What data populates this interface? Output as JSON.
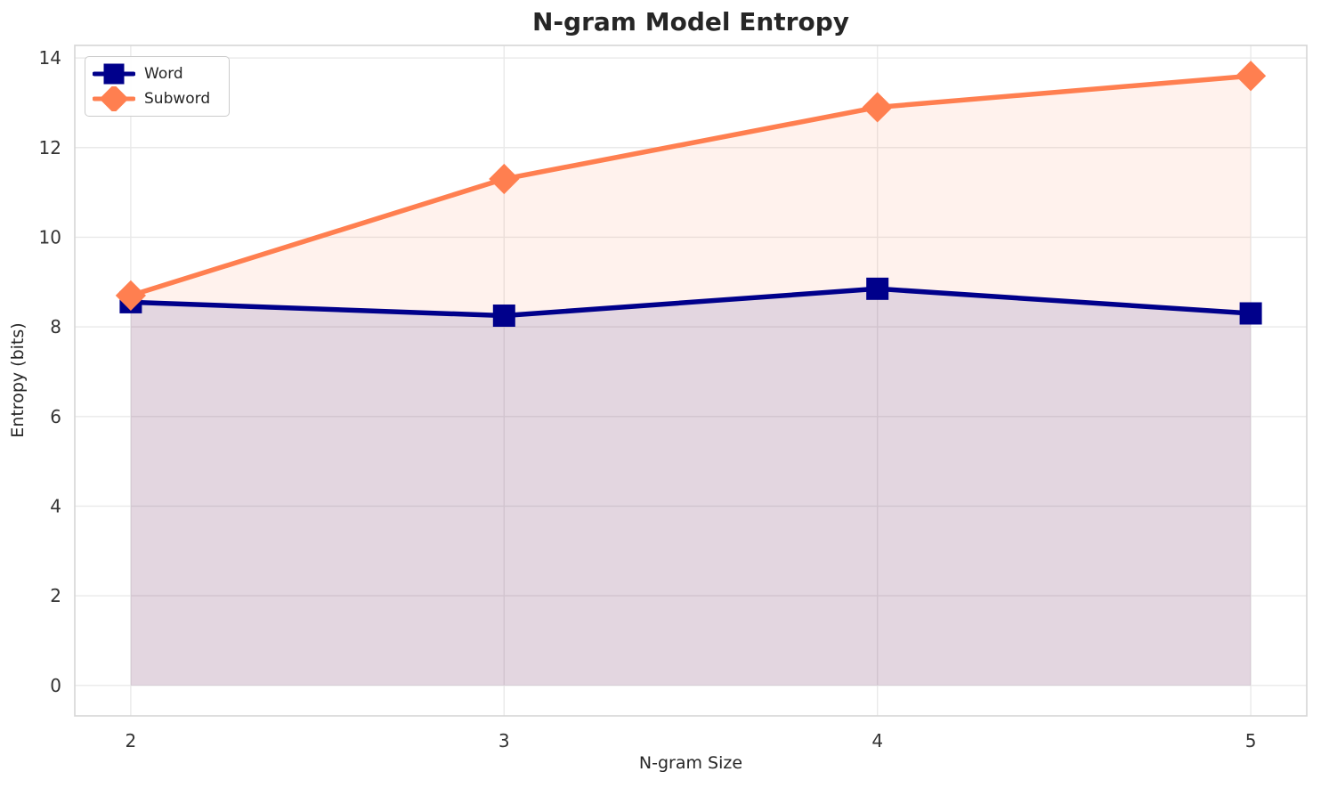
{
  "figure": {
    "title": "N-gram Model Entropy",
    "xlabel": "N-gram Size",
    "ylabel": "Entropy (bits)"
  },
  "chart_data": {
    "type": "line",
    "title": "N-gram Model Entropy",
    "xlabel": "N-gram Size",
    "ylabel": "Entropy (bits)",
    "x": [
      2,
      3,
      4,
      5
    ],
    "series": [
      {
        "name": "Word",
        "values": [
          8.55,
          8.25,
          8.85,
          8.3
        ],
        "color": "#00008B",
        "marker": "square",
        "fill_to_zero": true,
        "fill_opacity": 0.12
      },
      {
        "name": "Subword",
        "values": [
          8.7,
          11.3,
          12.9,
          13.6
        ],
        "color": "#FF7F50",
        "marker": "diamond",
        "fill_to_zero": true,
        "fill_opacity": 0.1
      }
    ],
    "xticks": [
      "2",
      "3",
      "4",
      "5"
    ],
    "xtick_values": [
      2,
      3,
      4,
      5
    ],
    "yticks": [
      "0",
      "2",
      "4",
      "6",
      "8",
      "10",
      "12",
      "14"
    ],
    "ytick_values": [
      0,
      2,
      4,
      6,
      8,
      10,
      12,
      14
    ],
    "xlim": [
      1.85,
      5.15
    ],
    "ylim": [
      -0.68,
      14.28
    ],
    "grid": true,
    "legend_position": "upper left"
  }
}
